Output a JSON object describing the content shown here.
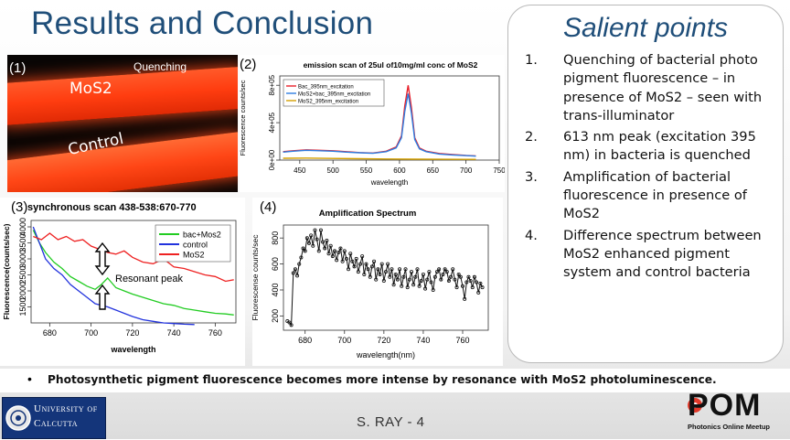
{
  "slide": {
    "title": "Results and Conclusion",
    "footer": "S. RAY  - 4",
    "bullet": "Photosynthetic pigment fluorescence becomes more intense by resonance with MoS2 photoluminescence."
  },
  "salient": {
    "heading": "Salient points",
    "points": [
      {
        "num": "1.",
        "text": "Quenching of bacterial photo pigment fluorescence – in presence of MoS2 – seen with trans-illuminator"
      },
      {
        "num": "2.",
        "text": "613 nm peak (excitation 395 nm) in bacteria is quenched"
      },
      {
        "num": "3.",
        "text": "Amplification of bacterial fluorescence in presence of MoS2"
      },
      {
        "num": "4.",
        "text": "Difference spectrum between MoS2 enhanced pigment system and control bacteria"
      }
    ]
  },
  "photo": {
    "label": "(1)",
    "quenching": "Quenching",
    "mos2": "MoS2",
    "control": "Control"
  },
  "logos": {
    "university_line1": "University of",
    "university_line2": "Calcutta",
    "pom": "POM",
    "pom_sub": "Photonics Online Meetup"
  },
  "chart_data": [
    {
      "label": "(2)",
      "type": "line",
      "title": "emission scan of 25ul of10mg/ml conc of MoS2",
      "xlabel": "wavelength",
      "ylabel": "Fluorescence counts/sec",
      "xlim": [
        420,
        750
      ],
      "ylim": [
        0,
        900000
      ],
      "xticks": [
        450,
        500,
        550,
        600,
        650,
        700,
        750
      ],
      "yticks": [
        "0e+00",
        "4e+05",
        "8e+05"
      ],
      "legend": "top-left",
      "series": [
        {
          "name": "Bac_395nm_excitation",
          "color": "#e8202a",
          "x": [
            425,
            440,
            460,
            480,
            500,
            520,
            540,
            560,
            580,
            595,
            603,
            608,
            613,
            618,
            623,
            630,
            640,
            660,
            680,
            700,
            715
          ],
          "y": [
            90000,
            100000,
            110000,
            105000,
            100000,
            90000,
            80000,
            75000,
            95000,
            140000,
            260000,
            580000,
            800000,
            560000,
            240000,
            130000,
            95000,
            70000,
            60000,
            50000,
            45000
          ]
        },
        {
          "name": "MoS2+bac_395nm_excitation",
          "color": "#2e7de0",
          "x": [
            425,
            440,
            460,
            480,
            500,
            520,
            540,
            560,
            580,
            595,
            603,
            608,
            613,
            618,
            623,
            630,
            640,
            660,
            680,
            700,
            715
          ],
          "y": [
            85000,
            95000,
            105000,
            100000,
            95000,
            85000,
            78000,
            72000,
            90000,
            130000,
            240000,
            520000,
            710000,
            500000,
            220000,
            120000,
            90000,
            65000,
            55000,
            48000,
            42000
          ]
        },
        {
          "name": "MoS2_395nm_excitation",
          "color": "#d4a000",
          "x": [
            425,
            460,
            500,
            540,
            580,
            620,
            660,
            700,
            715
          ],
          "y": [
            20000,
            22000,
            18000,
            15000,
            12000,
            10000,
            9000,
            8000,
            8000
          ]
        }
      ]
    },
    {
      "label": "(3)",
      "type": "line",
      "title": "synchronous scan 438-538:670-770",
      "xlabel": "wavelength",
      "ylabel": "Fluorescence(counts/sec)",
      "xlim": [
        671,
        770
      ],
      "ylim": [
        1000,
        4200
      ],
      "xticks": [
        680,
        700,
        720,
        740,
        760
      ],
      "yticks": [
        1500,
        2000,
        2500,
        3000,
        3500,
        4000
      ],
      "legend": "top-right",
      "annotation": "Resonant peak",
      "series": [
        {
          "name": "bac+Mos2",
          "color": "#22cc22",
          "x": [
            672,
            675,
            678,
            682,
            686,
            690,
            694,
            698,
            702,
            705,
            708,
            712,
            716,
            720,
            725,
            730,
            735,
            740,
            745,
            750,
            755,
            760,
            765,
            769
          ],
          "y": [
            3900,
            3500,
            3200,
            2900,
            2700,
            2450,
            2300,
            2150,
            2050,
            2200,
            2400,
            2100,
            2000,
            1900,
            1800,
            1700,
            1600,
            1550,
            1450,
            1400,
            1350,
            1300,
            1280,
            1250
          ]
        },
        {
          "name": "control",
          "color": "#2233dd",
          "x": [
            672,
            675,
            678,
            682,
            686,
            690,
            694,
            698,
            702,
            705,
            708,
            712,
            716,
            720,
            725,
            730,
            735,
            740,
            745,
            750
          ],
          "y": [
            4000,
            3500,
            3000,
            2700,
            2500,
            2200,
            2000,
            1800,
            1600,
            1550,
            1500,
            1400,
            1300,
            1200,
            1100,
            1050,
            1000,
            980,
            960,
            950
          ]
        },
        {
          "name": "MoS2",
          "color": "#ee2222",
          "x": [
            672,
            676,
            680,
            684,
            688,
            692,
            696,
            700,
            704,
            708,
            712,
            716,
            720,
            725,
            730,
            735,
            740,
            745,
            750,
            755,
            760,
            765,
            769
          ],
          "y": [
            3700,
            3600,
            3800,
            3600,
            3700,
            3550,
            3600,
            3400,
            3300,
            3200,
            3150,
            3250,
            3050,
            2900,
            2850,
            3000,
            2750,
            2700,
            2600,
            2500,
            2450,
            2300,
            2350
          ]
        }
      ]
    },
    {
      "label": "(4)",
      "type": "line",
      "title": "Amplification Spectrum",
      "xlabel": "wavelength(nm)",
      "ylabel": "Fluorescense counts/sec",
      "xlim": [
        669,
        773
      ],
      "ylim": [
        90,
        900
      ],
      "xticks": [
        680,
        700,
        720,
        740,
        760
      ],
      "yticks": [
        200,
        400,
        600,
        800
      ],
      "series": [
        {
          "name": "",
          "color": "#111111",
          "x": [
            671,
            672,
            673,
            674,
            675,
            676,
            677,
            678,
            679,
            680,
            681,
            682,
            683,
            684,
            685,
            686,
            687,
            688,
            689,
            690,
            691,
            692,
            693,
            694,
            695,
            696,
            697,
            698,
            699,
            700,
            701,
            702,
            703,
            704,
            705,
            706,
            707,
            708,
            709,
            710,
            711,
            712,
            713,
            714,
            715,
            716,
            717,
            718,
            719,
            720,
            721,
            722,
            723,
            724,
            725,
            726,
            727,
            728,
            729,
            730,
            731,
            732,
            733,
            734,
            735,
            736,
            737,
            738,
            739,
            740,
            741,
            742,
            743,
            744,
            745,
            746,
            747,
            748,
            749,
            750,
            751,
            752,
            753,
            754,
            755,
            756,
            757,
            758,
            759,
            760,
            761,
            762,
            763,
            764,
            765,
            766,
            767,
            768,
            769,
            770
          ],
          "y": [
            160,
            150,
            130,
            530,
            560,
            510,
            600,
            650,
            720,
            700,
            800,
            760,
            820,
            740,
            860,
            790,
            700,
            860,
            770,
            720,
            780,
            680,
            740,
            660,
            700,
            630,
            690,
            720,
            620,
            700,
            640,
            560,
            680,
            620,
            580,
            640,
            540,
            600,
            660,
            520,
            600,
            560,
            500,
            580,
            620,
            480,
            560,
            520,
            600,
            470,
            540,
            600,
            500,
            560,
            440,
            520,
            480,
            560,
            430,
            500,
            560,
            420,
            480,
            540,
            440,
            500,
            560,
            430,
            470,
            520,
            410,
            480,
            540,
            460,
            400,
            500,
            540,
            560,
            480,
            520,
            560,
            540,
            470,
            500,
            560,
            480,
            420,
            520,
            500,
            430,
            330,
            460,
            500,
            470,
            420,
            500,
            460,
            380,
            450,
            420
          ]
        }
      ]
    }
  ]
}
